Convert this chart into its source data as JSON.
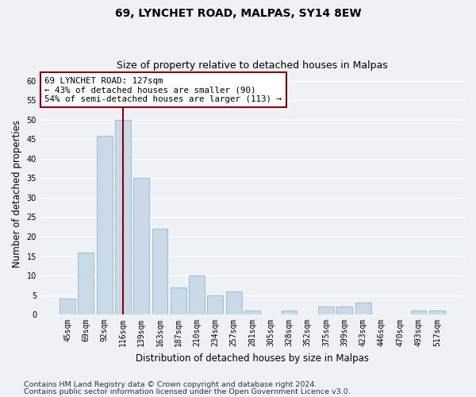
{
  "title1": "69, LYNCHET ROAD, MALPAS, SY14 8EW",
  "title2": "Size of property relative to detached houses in Malpas",
  "xlabel": "Distribution of detached houses by size in Malpas",
  "ylabel": "Number of detached properties",
  "categories": [
    "45sqm",
    "69sqm",
    "92sqm",
    "116sqm",
    "139sqm",
    "163sqm",
    "187sqm",
    "210sqm",
    "234sqm",
    "257sqm",
    "281sqm",
    "305sqm",
    "328sqm",
    "352sqm",
    "375sqm",
    "399sqm",
    "423sqm",
    "446sqm",
    "470sqm",
    "493sqm",
    "517sqm"
  ],
  "values": [
    4,
    16,
    46,
    50,
    35,
    22,
    7,
    10,
    5,
    6,
    1,
    0,
    1,
    0,
    2,
    2,
    3,
    0,
    0,
    1,
    1
  ],
  "bar_color": "#c9d9e8",
  "bar_edge_color": "#a0bcd0",
  "vline_x_index": 3,
  "vline_color": "#8b0000",
  "annotation_text": "69 LYNCHET ROAD: 127sqm\n← 43% of detached houses are smaller (90)\n54% of semi-detached houses are larger (113) →",
  "annotation_box_color": "#ffffff",
  "annotation_box_edge_color": "#8b0000",
  "ylim": [
    0,
    62
  ],
  "yticks": [
    0,
    5,
    10,
    15,
    20,
    25,
    30,
    35,
    40,
    45,
    50,
    55,
    60
  ],
  "footer1": "Contains HM Land Registry data © Crown copyright and database right 2024.",
  "footer2": "Contains public sector information licensed under the Open Government Licence v3.0.",
  "bg_color": "#eef2f7",
  "plot_bg_color": "#eef2f7",
  "grid_color": "#ffffff",
  "title1_fontsize": 10,
  "title2_fontsize": 9,
  "annotation_fontsize": 7.8,
  "footer_fontsize": 6.8,
  "ylabel_fontsize": 8.5,
  "xlabel_fontsize": 8.5,
  "tick_fontsize": 7.0
}
